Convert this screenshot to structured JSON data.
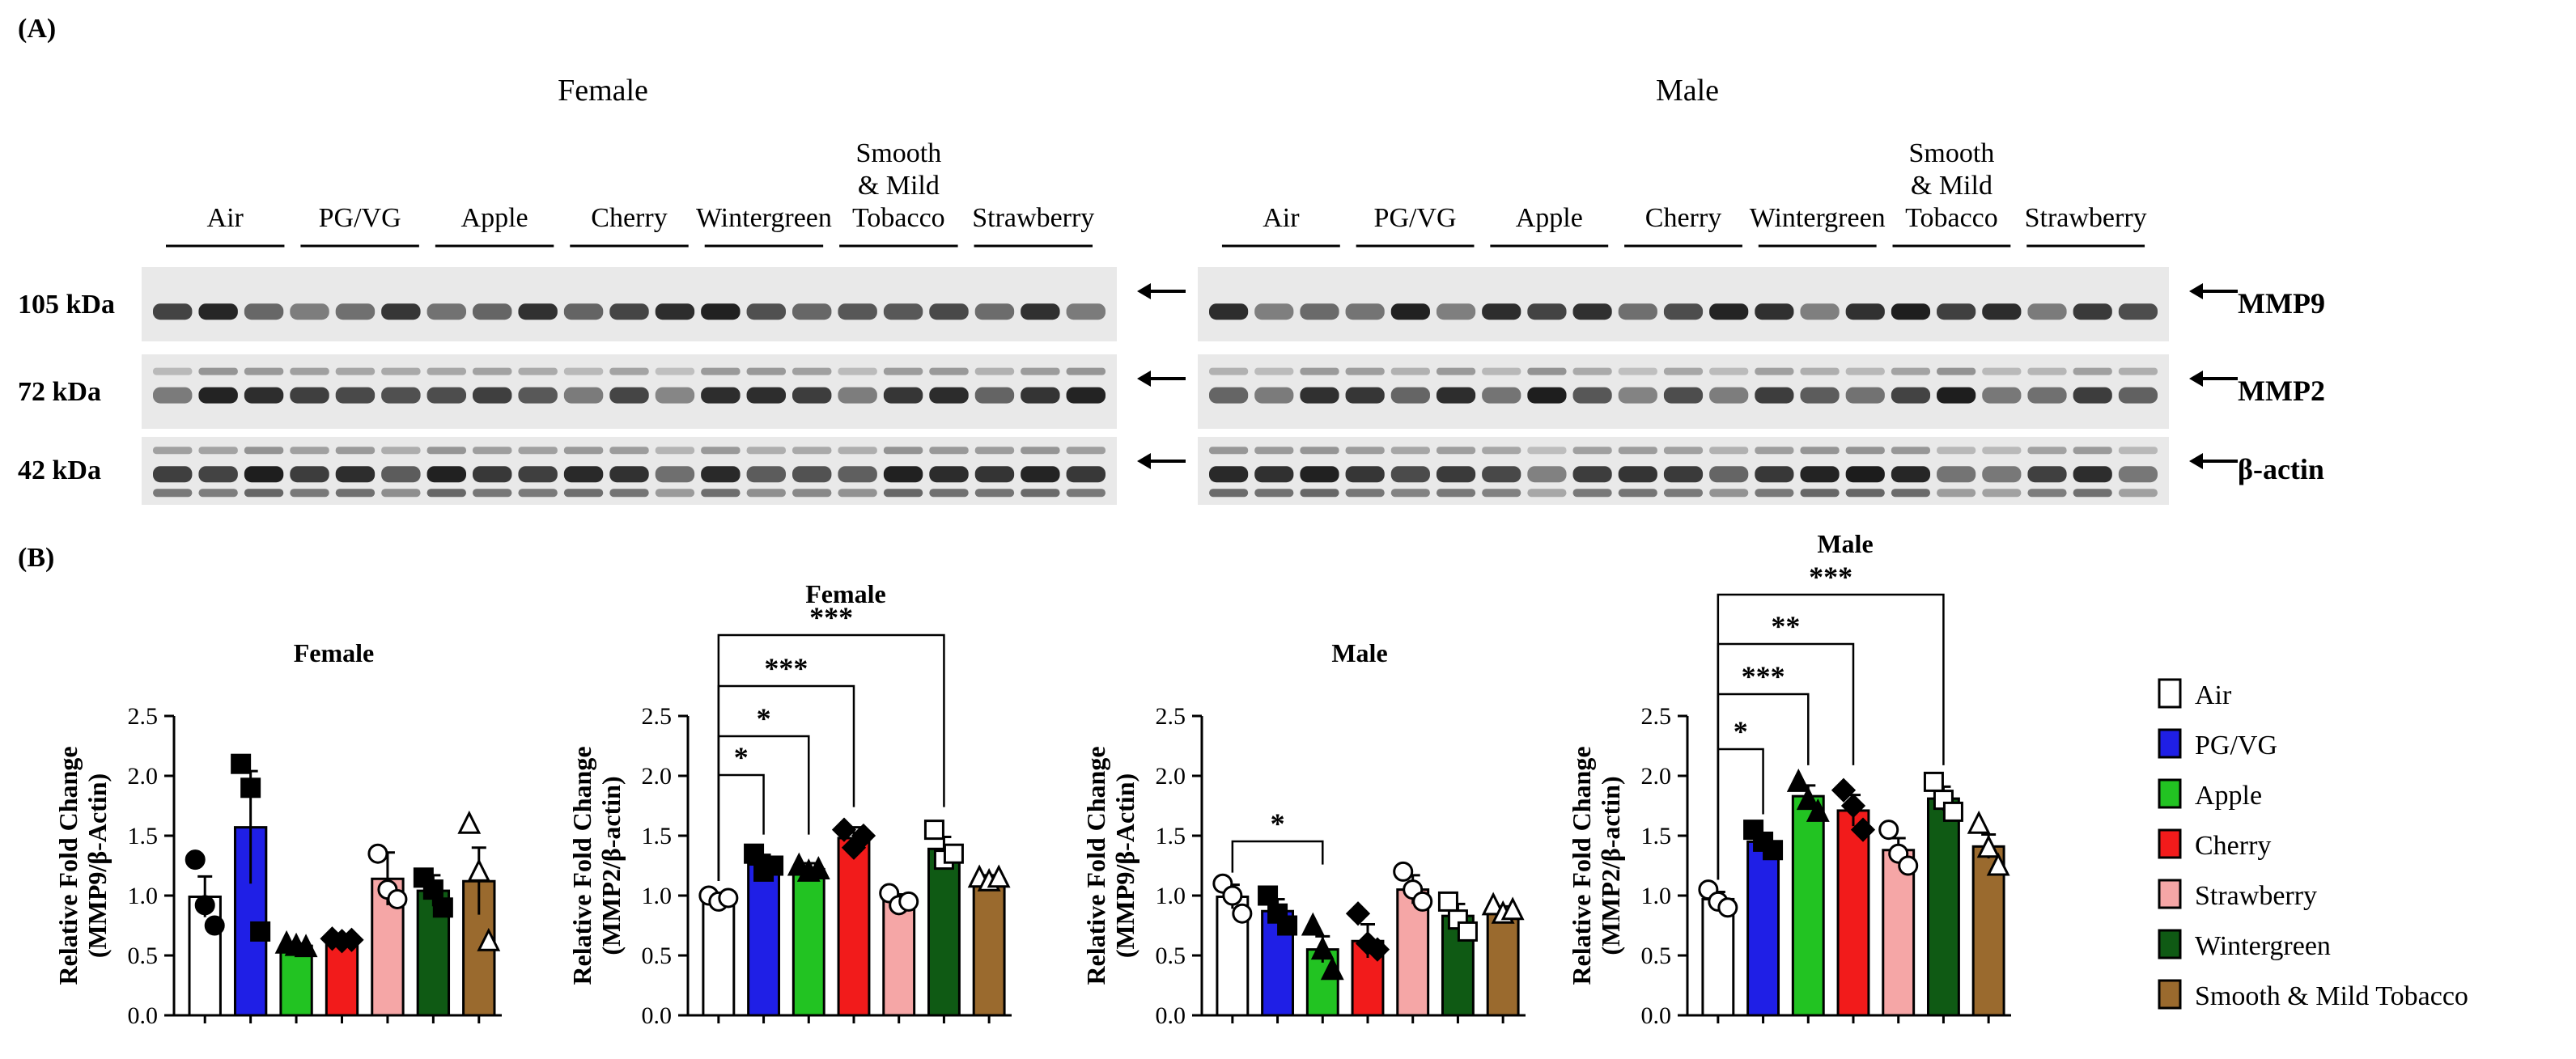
{
  "panel_labels": {
    "a": "(A)",
    "b": "(B)"
  },
  "blot": {
    "groups": [
      {
        "title": "Female",
        "treatments": [
          "Air",
          "PG/VG",
          "Apple",
          "Cherry",
          "Wintergreen",
          "Smooth\n& Mild\nTobacco",
          "Strawberry"
        ]
      },
      {
        "title": "Male",
        "treatments": [
          "Air",
          "PG/VG",
          "Apple",
          "Cherry",
          "Wintergreen",
          "Smooth\n& Mild\nTobacco",
          "Strawberry"
        ]
      }
    ],
    "rows": [
      {
        "kda": "105 kDa",
        "protein": "MMP9"
      },
      {
        "kda": "72 kDa",
        "protein": "MMP2"
      },
      {
        "kda": "42 kDa",
        "protein": "β-actin"
      }
    ]
  },
  "colors": {
    "Air": "#ffffff",
    "PG/VG": "#1f1fe6",
    "Apple": "#22c322",
    "Cherry": "#f21b1b",
    "Strawberry": "#f5a6a6",
    "Wintergreen": "#0f5a14",
    "Smooth & Mild Tobacco": "#9a6a2e"
  },
  "legend": {
    "items": [
      "Air",
      "PG/VG",
      "Apple",
      "Cherry",
      "Strawberry",
      "Wintergreen",
      "Smooth & Mild Tobacco"
    ]
  },
  "chart_data": [
    {
      "type": "bar",
      "title": "Female",
      "ylabel": "Relative Fold Change\n(MMP9/β-Actin)",
      "ylim": [
        0,
        2.5
      ],
      "yticks": [
        "0.0",
        "0.5",
        "1.0",
        "1.5",
        "2.0",
        "2.5"
      ],
      "categories": [
        "Air",
        "PG/VG",
        "Apple",
        "Cherry",
        "Strawberry",
        "Wintergreen",
        "Smooth & Mild Tobacco"
      ],
      "values": [
        0.99,
        1.57,
        0.58,
        0.63,
        1.14,
        1.04,
        1.12
      ],
      "sem": [
        0.17,
        0.47,
        0.02,
        0.02,
        0.22,
        0.13,
        0.28
      ],
      "points": [
        [
          1.3,
          0.92,
          0.75
        ],
        [
          2.1,
          1.9,
          0.7
        ],
        [
          0.6,
          0.58,
          0.57
        ],
        [
          0.64,
          0.62,
          0.63
        ],
        [
          1.35,
          1.05,
          0.97
        ],
        [
          1.15,
          1.05,
          0.9
        ],
        [
          1.6,
          1.2,
          0.62
        ]
      ],
      "markers": [
        "circle",
        "square",
        "triangle",
        "diamond",
        "circle",
        "square",
        "triangle"
      ],
      "significance": []
    },
    {
      "type": "bar",
      "title": "Female",
      "ylabel": "Relative Fold Change\n(MMP2/β-actin)",
      "ylim": [
        0,
        2.5
      ],
      "yticks": [
        "0.0",
        "0.5",
        "1.0",
        "1.5",
        "2.0",
        "2.5"
      ],
      "categories": [
        "Air",
        "PG/VG",
        "Apple",
        "Cherry",
        "Strawberry",
        "Wintergreen",
        "Smooth & Mild Tobacco"
      ],
      "values": [
        0.98,
        1.26,
        1.22,
        1.48,
        0.96,
        1.39,
        1.14
      ],
      "sem": [
        0.04,
        0.08,
        0.05,
        0.09,
        0.05,
        0.1,
        0.03
      ],
      "points": [
        [
          1.0,
          0.95,
          0.98
        ],
        [
          1.35,
          1.2,
          1.25
        ],
        [
          1.25,
          1.2,
          1.22
        ],
        [
          1.55,
          1.4,
          1.5
        ],
        [
          1.02,
          0.92,
          0.95
        ],
        [
          1.55,
          1.3,
          1.35
        ],
        [
          1.15,
          1.12,
          1.15
        ]
      ],
      "markers": [
        "circle",
        "square",
        "triangle",
        "diamond",
        "circle",
        "square",
        "triangle"
      ],
      "significance": [
        {
          "from": 0,
          "to": 1,
          "label": "*"
        },
        {
          "from": 0,
          "to": 2,
          "label": "*"
        },
        {
          "from": 0,
          "to": 3,
          "label": "***"
        },
        {
          "from": 0,
          "to": 5,
          "label": "***"
        }
      ]
    },
    {
      "type": "bar",
      "title": "Male",
      "ylabel": "Relative Fold Change\n(MMP9/β-Actin)",
      "ylim": [
        0,
        2.5
      ],
      "yticks": [
        "0.0",
        "0.5",
        "1.0",
        "1.5",
        "2.0",
        "2.5"
      ],
      "categories": [
        "Air",
        "PG/VG",
        "Apple",
        "Cherry",
        "Strawberry",
        "Wintergreen",
        "Smooth & Mild Tobacco"
      ],
      "values": [
        0.99,
        0.87,
        0.55,
        0.62,
        1.05,
        0.83,
        0.87
      ],
      "sem": [
        0.1,
        0.1,
        0.11,
        0.14,
        0.12,
        0.1,
        0.04
      ],
      "points": [
        [
          1.1,
          1.0,
          0.85
        ],
        [
          1.0,
          0.85,
          0.75
        ],
        [
          0.75,
          0.55,
          0.38
        ],
        [
          0.85,
          0.6,
          0.55
        ],
        [
          1.2,
          1.05,
          0.95
        ],
        [
          0.95,
          0.8,
          0.7
        ],
        [
          0.92,
          0.85,
          0.88
        ]
      ],
      "markers": [
        "circle",
        "square",
        "triangle",
        "diamond",
        "circle",
        "square",
        "triangle"
      ],
      "significance": [
        {
          "from": 0,
          "to": 2,
          "label": "*"
        }
      ]
    },
    {
      "type": "bar",
      "title": "Male",
      "ylabel": "Relative Fold Change\n(MMP2/β-actin)",
      "ylim": [
        0,
        2.5
      ],
      "yticks": [
        "0.0",
        "0.5",
        "1.0",
        "1.5",
        "2.0",
        "2.5"
      ],
      "categories": [
        "Air",
        "PG/VG",
        "Apple",
        "Cherry",
        "Strawberry",
        "Wintergreen",
        "Smooth & Mild Tobacco"
      ],
      "values": [
        0.97,
        1.45,
        1.83,
        1.71,
        1.38,
        1.81,
        1.41
      ],
      "sem": [
        0.06,
        0.06,
        0.09,
        0.13,
        0.1,
        0.1,
        0.1
      ],
      "points": [
        [
          1.05,
          0.95,
          0.9
        ],
        [
          1.55,
          1.45,
          1.38
        ],
        [
          1.95,
          1.8,
          1.7
        ],
        [
          1.88,
          1.75,
          1.55
        ],
        [
          1.55,
          1.35,
          1.25
        ],
        [
          1.95,
          1.8,
          1.7
        ],
        [
          1.6,
          1.4,
          1.25
        ]
      ],
      "markers": [
        "circle",
        "square",
        "triangle",
        "diamond",
        "circle",
        "square",
        "triangle"
      ],
      "significance": [
        {
          "from": 0,
          "to": 1,
          "label": "*"
        },
        {
          "from": 0,
          "to": 2,
          "label": "***"
        },
        {
          "from": 0,
          "to": 3,
          "label": "**"
        },
        {
          "from": 0,
          "to": 5,
          "label": "***"
        }
      ]
    }
  ]
}
